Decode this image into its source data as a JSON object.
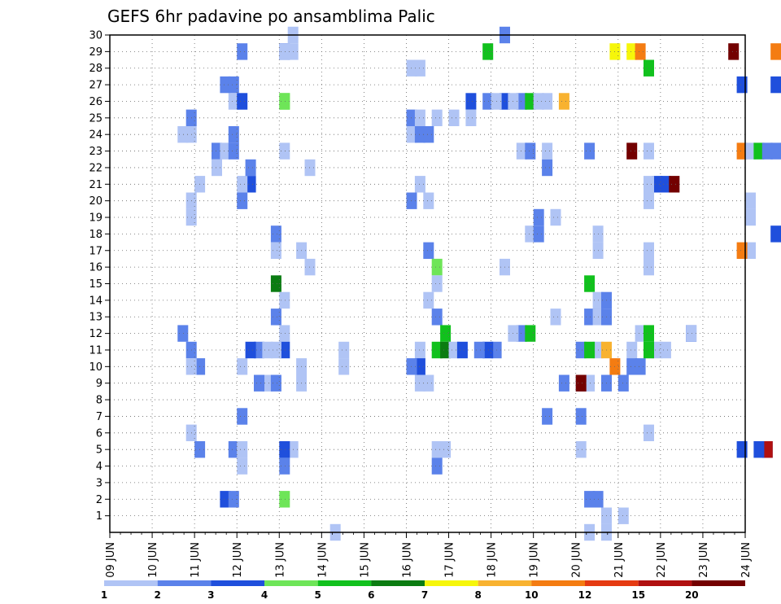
{
  "chart_data": {
    "type": "heatmap",
    "title": "GEFS 6hr padavine po ansamblima Palic",
    "xlabel": "",
    "ylabel": "",
    "x_tick_labels": [
      "09 JUN",
      "10 JUN",
      "11 JUN",
      "12 JUN",
      "13 JUN",
      "14 JUN",
      "15 JUN",
      "16 JUN",
      "17 JUN",
      "18 JUN",
      "19 JUN",
      "20 JUN",
      "21 JUN",
      "22 JUN",
      "23 JUN",
      "24 JUN"
    ],
    "y_tick_labels": [
      "1",
      "2",
      "3",
      "4",
      "5",
      "6",
      "7",
      "8",
      "9",
      "10",
      "11",
      "12",
      "13",
      "14",
      "15",
      "16",
      "17",
      "18",
      "19",
      "20",
      "21",
      "22",
      "23",
      "24",
      "25",
      "26",
      "27",
      "28",
      "29",
      "30"
    ],
    "xlim": [
      "09 JUN 00Z",
      "24 JUN 00Z"
    ],
    "ylim": [
      0,
      30
    ],
    "grid": true,
    "colorbar": {
      "labels": [
        "1",
        "2",
        "3",
        "4",
        "5",
        "6",
        "7",
        "8",
        "10",
        "12",
        "15",
        "20"
      ],
      "colors": [
        "#b0c4f5",
        "#5b82ea",
        "#1f4fdc",
        "#6ee558",
        "#11c11d",
        "#0b7c12",
        "#f6f60a",
        "#f8b230",
        "#f47c12",
        "#e53a12",
        "#b01010",
        "#730000"
      ]
    },
    "cells": [
      [
        1,
        30,
        4.2
      ],
      [
        3,
        29,
        4.0
      ],
      [
        1,
        28,
        7.0
      ],
      [
        2,
        27,
        2.6
      ],
      [
        2,
        27,
        2.8
      ],
      [
        1,
        26,
        2.8
      ],
      [
        3,
        26,
        3.0
      ],
      [
        4,
        26,
        4.0
      ],
      [
        2,
        25,
        1.8
      ],
      [
        1,
        24,
        1.6
      ],
      [
        1,
        24,
        1.8
      ],
      [
        2,
        23,
        2.4
      ],
      [
        1,
        23,
        2.6
      ],
      [
        1,
        23,
        4.0
      ],
      [
        1,
        22,
        2.4
      ],
      [
        1,
        22,
        4.6
      ],
      [
        3,
        21,
        3.2
      ],
      [
        1,
        21,
        2.0
      ],
      [
        1,
        21,
        3.0
      ],
      [
        1,
        20,
        1.8
      ],
      [
        1,
        19,
        1.8
      ],
      [
        2,
        18,
        3.8
      ],
      [
        1,
        17,
        3.8
      ],
      [
        1,
        17,
        4.4
      ],
      [
        6,
        15,
        3.8
      ],
      [
        1,
        14,
        4.0
      ],
      [
        2,
        13,
        3.8
      ],
      [
        1,
        12,
        4.0
      ],
      [
        2,
        11,
        1.8
      ],
      [
        3,
        11,
        4.0
      ],
      [
        1,
        11,
        5.4
      ],
      [
        2,
        10,
        2.0
      ],
      [
        1,
        10,
        1.8
      ],
      [
        1,
        10,
        3.0
      ],
      [
        1,
        10,
        4.4
      ],
      [
        1,
        10,
        5.4
      ],
      [
        1,
        9,
        3.6
      ],
      [
        2,
        9,
        3.8
      ],
      [
        2,
        7,
        3.0
      ],
      [
        1,
        6,
        1.8
      ],
      [
        2,
        5,
        2.0
      ],
      [
        2,
        5,
        2.8
      ],
      [
        1,
        5,
        3.0
      ],
      [
        1,
        5,
        4.0
      ],
      [
        1,
        5,
        4.2
      ],
      [
        1,
        4,
        3.0
      ],
      [
        3,
        2,
        2.6
      ],
      [
        2,
        2,
        2.8
      ],
      [
        4,
        2,
        4.0
      ],
      [
        1,
        0,
        5.2
      ],
      [
        2,
        29,
        3.0
      ],
      [
        1,
        29,
        4.0
      ],
      [
        1,
        29,
        4.2
      ],
      [
        4,
        26,
        4.0
      ],
      [
        2,
        24,
        2.8
      ],
      [
        2,
        23,
        2.8
      ],
      [
        2,
        22,
        3.2
      ],
      [
        2,
        20,
        3.0
      ],
      [
        1,
        16,
        4.6
      ],
      [
        2,
        12,
        1.6
      ],
      [
        2,
        11,
        3.4
      ],
      [
        1,
        11,
        3.6
      ],
      [
        1,
        11,
        3.8
      ],
      [
        3,
        11,
        3.2
      ],
      [
        2,
        9,
        3.4
      ],
      [
        1,
        9,
        4.4
      ],
      [
        3,
        5,
        4.0
      ],
      [
        2,
        4,
        4.0
      ],
      [
        1,
        28,
        7.2
      ],
      [
        2,
        25,
        7.0
      ],
      [
        1,
        25,
        7.2
      ],
      [
        1,
        24,
        7.0
      ],
      [
        2,
        24,
        7.2
      ],
      [
        2,
        24,
        7.4
      ],
      [
        1,
        21,
        7.2
      ],
      [
        2,
        20,
        7.0
      ],
      [
        1,
        20,
        7.4
      ],
      [
        2,
        17,
        7.4
      ],
      [
        4,
        16,
        7.6
      ],
      [
        1,
        15,
        7.6
      ],
      [
        1,
        14,
        7.4
      ],
      [
        2,
        13,
        7.6
      ],
      [
        5,
        12,
        7.8
      ],
      [
        1,
        11,
        7.2
      ],
      [
        5,
        11,
        7.6
      ],
      [
        6,
        11,
        7.8
      ],
      [
        1,
        11,
        8.0
      ],
      [
        3,
        11,
        8.2
      ],
      [
        3,
        10,
        7.2
      ],
      [
        2,
        10,
        7.0
      ],
      [
        1,
        9,
        7.2
      ],
      [
        1,
        9,
        7.4
      ],
      [
        1,
        5,
        7.6
      ],
      [
        1,
        5,
        7.8
      ],
      [
        2,
        4,
        7.6
      ],
      [
        3,
        26,
        8.4
      ],
      [
        2,
        26,
        8.8
      ],
      [
        1,
        25,
        8.4
      ],
      [
        1,
        25,
        7.6
      ],
      [
        1,
        25,
        8.0
      ],
      [
        1,
        16,
        9.2
      ],
      [
        2,
        11,
        9.0
      ],
      [
        3,
        11,
        8.8
      ],
      [
        2,
        11,
        8.6
      ],
      [
        2,
        12,
        9.6
      ],
      [
        5,
        12,
        9.8
      ],
      [
        1,
        12,
        9.4
      ],
      [
        2,
        30,
        9.2
      ],
      [
        5,
        29,
        8.8
      ],
      [
        2,
        26,
        9.6
      ],
      [
        3,
        26,
        9.2
      ],
      [
        1,
        26,
        9.0
      ],
      [
        1,
        26,
        9.4
      ],
      [
        5,
        26,
        9.8
      ],
      [
        8,
        26,
        10.6
      ],
      [
        1,
        26,
        10.2
      ],
      [
        1,
        26,
        10.0
      ],
      [
        1,
        23,
        9.6
      ],
      [
        1,
        23,
        10.2
      ],
      [
        2,
        23,
        11.2
      ],
      [
        2,
        23,
        9.8
      ],
      [
        2,
        22,
        10.2
      ],
      [
        2,
        19,
        10.0
      ],
      [
        1,
        19,
        10.4
      ],
      [
        1,
        18,
        9.8
      ],
      [
        2,
        18,
        10.0
      ],
      [
        1,
        18,
        11.4
      ],
      [
        1,
        17,
        11.4
      ],
      [
        1,
        13,
        10.4
      ],
      [
        2,
        13,
        11.4
      ],
      [
        2,
        13,
        11.2
      ],
      [
        1,
        12,
        12.4
      ],
      [
        1,
        11,
        12.2
      ],
      [
        2,
        11,
        11.0
      ],
      [
        1,
        11,
        11.4
      ],
      [
        5,
        11,
        11.2
      ],
      [
        8,
        11,
        11.6
      ],
      [
        9,
        10,
        11.8
      ],
      [
        2,
        9,
        10.6
      ],
      [
        1,
        9,
        11.0
      ],
      [
        1,
        9,
        11.2
      ],
      [
        2,
        9,
        11.6
      ],
      [
        2,
        9,
        12.0
      ],
      [
        12,
        9,
        11.0
      ],
      [
        2,
        7,
        10.2
      ],
      [
        2,
        7,
        11.0
      ],
      [
        1,
        5,
        11.0
      ],
      [
        2,
        2,
        11.4
      ],
      [
        2,
        2,
        11.2
      ],
      [
        1,
        1,
        11.6
      ],
      [
        1,
        1,
        12.0
      ],
      [
        1,
        0,
        11.2
      ],
      [
        1,
        0,
        11.6
      ],
      [
        5,
        15,
        11.2
      ],
      [
        1,
        14,
        11.4
      ],
      [
        1,
        13,
        11.4
      ],
      [
        2,
        14,
        11.6
      ],
      [
        2,
        13,
        11.6
      ],
      [
        7,
        29,
        11.8
      ],
      [
        7,
        29,
        12.2
      ],
      [
        9,
        29,
        12.4
      ],
      [
        12,
        23,
        12.2
      ],
      [
        5,
        28,
        12.6
      ],
      [
        1,
        23,
        12.6
      ],
      [
        3,
        21,
        12.8
      ],
      [
        3,
        21,
        13.0
      ],
      [
        12,
        21,
        13.2
      ],
      [
        1,
        21,
        12.6
      ],
      [
        1,
        20,
        12.6
      ],
      [
        1,
        17,
        12.6
      ],
      [
        1,
        16,
        12.6
      ],
      [
        1,
        11,
        12.6
      ],
      [
        1,
        11,
        12.8
      ],
      [
        2,
        10,
        12.2
      ],
      [
        2,
        10,
        12.4
      ],
      [
        1,
        6,
        12.6
      ],
      [
        5,
        12,
        12.6
      ],
      [
        5,
        11,
        12.6
      ],
      [
        1,
        11,
        13.0
      ],
      [
        3,
        12,
        13.6
      ],
      [
        1,
        12,
        13.6
      ],
      [
        12,
        29,
        14.6
      ],
      [
        3,
        27,
        14.8
      ],
      [
        9,
        23,
        14.8
      ],
      [
        1,
        23,
        15.0
      ],
      [
        5,
        23,
        15.2
      ],
      [
        2,
        23,
        15.4
      ],
      [
        1,
        20,
        15.0
      ],
      [
        1,
        19,
        15.0
      ],
      [
        1,
        17,
        15.0
      ],
      [
        9,
        17,
        14.8
      ],
      [
        3,
        5,
        14.8
      ],
      [
        2,
        5,
        15.4
      ],
      [
        11,
        5,
        15.4
      ],
      [
        9,
        29,
        15.6
      ],
      [
        3,
        27,
        15.6
      ],
      [
        2,
        23,
        15.6
      ],
      [
        3,
        18,
        15.6
      ],
      [
        3,
        5,
        15.2
      ]
    ]
  }
}
